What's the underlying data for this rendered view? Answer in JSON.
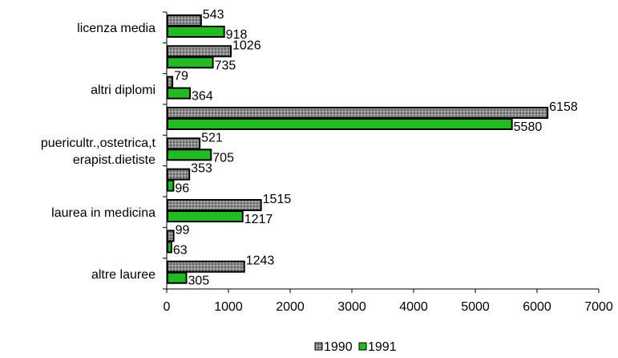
{
  "chart_data": {
    "type": "bar",
    "orientation": "horizontal",
    "categories": [
      "licenza media",
      "",
      "altri diplomi",
      "",
      "puericultr.,ostetrica,terapist.dietiste",
      "",
      "laurea in medicina",
      "",
      "altre lauree"
    ],
    "category_label_lines": [
      [
        "licenza media"
      ],
      [],
      [
        "altri diplomi"
      ],
      [],
      [
        "puericultr.,ostetrica,t",
        "erapist.dietiste"
      ],
      [],
      [
        "laurea in medicina"
      ],
      [],
      [
        "altre lauree"
      ]
    ],
    "series": [
      {
        "name": "1990",
        "values": [
          543,
          1026,
          79,
          6158,
          521,
          353,
          1515,
          99,
          1243
        ],
        "color": "#8c8c8c",
        "pattern": "dotted"
      },
      {
        "name": "1991",
        "values": [
          918,
          735,
          364,
          5580,
          705,
          96,
          1217,
          63,
          305
        ],
        "color": "#22bb22"
      }
    ],
    "value_labels": [
      [
        "543",
        "1026",
        "79",
        "6158",
        "521",
        "353",
        "1515",
        "99",
        "1243"
      ],
      [
        "918",
        "735",
        "364",
        "5580",
        "705",
        "96",
        "1217",
        "63",
        "305"
      ]
    ],
    "xticks": [
      "0",
      "1000",
      "2000",
      "3000",
      "4000",
      "5000",
      "6000",
      "7000"
    ],
    "xlim": [
      0,
      7000
    ],
    "title": "",
    "xlabel": "",
    "ylabel": "",
    "grid": false,
    "legend": {
      "position": "bottom",
      "entries": [
        "1990",
        "1991"
      ]
    },
    "colors": {
      "series_1990": "#8c8c8c",
      "series_1991": "#22bb22",
      "bar_outline": "#000000"
    }
  }
}
